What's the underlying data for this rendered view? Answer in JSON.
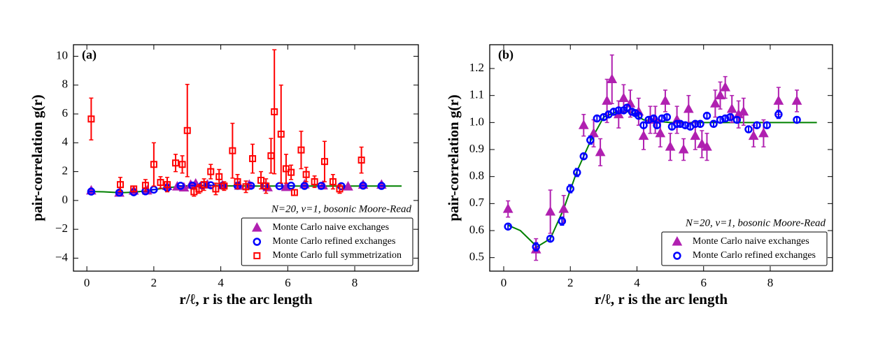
{
  "chart_data": [
    {
      "type": "scatter",
      "panel_label": "(a)",
      "ylabel": "pair-correlation g(r)",
      "xlabel": "r/ℓ, r is the arc length",
      "annotation": "N=20, ν=1, bosonic Moore-Read",
      "legend": "lower right",
      "xlim": [
        -0.4,
        9.9
      ],
      "ylim": [
        -4.9,
        10.8
      ],
      "xticks": [
        0,
        2,
        4,
        6,
        8
      ],
      "yticks": [
        {
          "value": -4,
          "label": "−4"
        },
        {
          "value": -2,
          "label": "−2"
        },
        0,
        2,
        4,
        6,
        8,
        10
      ],
      "curve": {
        "color": "#008000",
        "x": [
          0.13,
          0.5,
          1.0,
          1.4,
          1.8,
          2.2,
          2.6,
          3.0,
          3.4,
          3.8,
          4.2,
          5,
          6,
          7,
          8,
          9.4
        ],
        "values": [
          0.62,
          0.6,
          0.54,
          0.57,
          0.68,
          0.82,
          0.93,
          1.02,
          1.04,
          1.04,
          1.01,
          1.0,
          1.0,
          1.0,
          1.0,
          1.0
        ]
      },
      "series": [
        {
          "name": "Monte Carlo naive exchanges",
          "color": "#b020b0",
          "marker": "triangle",
          "x": [
            0.13,
            0.97,
            1.4,
            1.8,
            2.4,
            2.7,
            2.9,
            3.1,
            3.25,
            3.6,
            4.05,
            4.55,
            4.85,
            5.4,
            5.95,
            6.5,
            7.05,
            7.8,
            8.25,
            8.8
          ],
          "values": [
            0.68,
            0.53,
            0.67,
            0.68,
            0.99,
            0.96,
            0.89,
            1.08,
            1.16,
            1.09,
            1.04,
            1.01,
            1.08,
            0.9,
            0.92,
            1.1,
            1.03,
            0.96,
            1.08,
            1.08
          ],
          "errors": [
            0.03,
            0.04,
            0.08,
            0.05,
            0.04,
            0.05,
            0.05,
            0.08,
            0.09,
            0.05,
            0.05,
            0.05,
            0.04,
            0.04,
            0.05,
            0.05,
            0.05,
            0.05,
            0.05,
            0.04
          ]
        },
        {
          "name": "Monte Carlo refined exchanges",
          "color": "#0000ff",
          "marker": "circle",
          "x": [
            0.13,
            0.97,
            1.4,
            1.75,
            2.0,
            2.4,
            2.8,
            3.15,
            3.45,
            3.7,
            4.05,
            4.5,
            4.9,
            5.3,
            5.75,
            6.1,
            6.5,
            7.0,
            7.6,
            8.25,
            8.8
          ],
          "values": [
            0.615,
            0.54,
            0.57,
            0.635,
            0.755,
            0.875,
            1.015,
            1.03,
            1.045,
            1.055,
            1.025,
            1.015,
            1.02,
            0.995,
            0.995,
            1.025,
            1.01,
            1.01,
            0.99,
            1.03,
            1.01
          ],
          "errors": [
            0.015,
            0.015,
            0.01,
            0.015,
            0.015,
            0.01,
            0.01,
            0.01,
            0.01,
            0.01,
            0.01,
            0.01,
            0.01,
            0.01,
            0.01,
            0.01,
            0.01,
            0.01,
            0.01,
            0.015,
            0.01
          ]
        },
        {
          "name": "Monte Carlo full symmetrization",
          "color": "#ff0000",
          "marker": "square",
          "x": [
            0.13,
            1.0,
            1.4,
            1.75,
            2.0,
            2.2,
            2.4,
            2.65,
            2.85,
            3.0,
            3.2,
            3.35,
            3.5,
            3.7,
            3.85,
            3.95,
            4.1,
            4.35,
            4.5,
            4.75,
            4.95,
            5.2,
            5.35,
            5.5,
            5.6,
            5.8,
            5.95,
            6.1,
            6.2,
            6.4,
            6.55,
            6.8,
            7.1,
            7.35,
            7.55,
            8.2
          ],
          "values": [
            5.65,
            1.1,
            0.8,
            1.05,
            2.5,
            1.25,
            1.1,
            2.6,
            2.5,
            4.85,
            0.6,
            0.8,
            1.1,
            2.0,
            0.8,
            1.65,
            1.0,
            3.45,
            1.3,
            0.95,
            2.9,
            1.4,
            1.0,
            3.1,
            6.15,
            4.6,
            2.2,
            1.95,
            0.55,
            3.5,
            1.8,
            1.3,
            2.7,
            1.3,
            0.8,
            2.8
          ],
          "errors": [
            1.45,
            0.5,
            0.2,
            0.4,
            1.5,
            0.4,
            0.5,
            0.6,
            0.6,
            3.2,
            0.3,
            0.3,
            0.4,
            0.5,
            0.4,
            0.5,
            0.3,
            1.9,
            0.5,
            0.4,
            1.0,
            0.6,
            0.5,
            1.2,
            4.3,
            3.4,
            1.0,
            0.5,
            0.2,
            1.3,
            0.5,
            0.4,
            1.4,
            0.5,
            0.3,
            0.9
          ]
        }
      ]
    },
    {
      "type": "scatter",
      "panel_label": "(b)",
      "ylabel": "pair-correlation g(r)",
      "xlabel": "r/ℓ, r is the arc length",
      "annotation": "N=20, ν=1, bosonic Moore-Read",
      "legend": "lower right",
      "xlim": [
        -0.42,
        9.87
      ],
      "ylim": [
        0.45,
        1.288
      ],
      "xticks": [
        0,
        2,
        4,
        6,
        8
      ],
      "yticks": [
        0.5,
        0.6,
        0.7,
        0.8,
        0.9,
        {
          "value": 1,
          "label": "1.0"
        },
        1.1,
        1.2
      ],
      "curve": {
        "color": "#008000",
        "x": [
          0.13,
          0.5,
          1.0,
          1.4,
          1.8,
          2.2,
          2.6,
          3.0,
          3.4,
          3.8,
          4.2,
          5,
          6,
          7,
          8,
          9.4
        ],
        "values": [
          0.62,
          0.6,
          0.54,
          0.57,
          0.68,
          0.82,
          0.93,
          1.02,
          1.04,
          1.04,
          1.01,
          1.0,
          1.0,
          1.0,
          1.0,
          1.0
        ]
      },
      "series": [
        {
          "name": "Monte Carlo naive exchanges",
          "color": "#b020b0",
          "marker": "triangle",
          "x": [
            0.13,
            0.97,
            1.4,
            1.8,
            2.4,
            2.7,
            2.9,
            3.1,
            3.25,
            3.45,
            3.6,
            3.8,
            4.05,
            4.2,
            4.4,
            4.55,
            4.7,
            4.85,
            5.0,
            5.2,
            5.4,
            5.55,
            5.75,
            5.95,
            6.1,
            6.35,
            6.5,
            6.65,
            6.85,
            7.05,
            7.2,
            7.5,
            7.8,
            8.25,
            8.8
          ],
          "values": [
            0.68,
            0.53,
            0.67,
            0.68,
            0.99,
            0.96,
            0.89,
            1.08,
            1.16,
            1.03,
            1.09,
            1.07,
            1.04,
            0.95,
            1.01,
            1.01,
            0.96,
            1.08,
            0.91,
            1.01,
            0.9,
            1.05,
            0.95,
            0.92,
            0.91,
            1.07,
            1.1,
            1.13,
            1.05,
            1.03,
            1.04,
            0.95,
            0.96,
            1.08,
            1.08
          ],
          "errors": [
            0.03,
            0.04,
            0.08,
            0.05,
            0.04,
            0.05,
            0.05,
            0.08,
            0.09,
            0.05,
            0.05,
            0.05,
            0.05,
            0.05,
            0.05,
            0.05,
            0.05,
            0.04,
            0.05,
            0.05,
            0.04,
            0.05,
            0.05,
            0.05,
            0.05,
            0.05,
            0.05,
            0.04,
            0.05,
            0.05,
            0.05,
            0.04,
            0.05,
            0.05,
            0.04
          ]
        },
        {
          "name": "Monte Carlo refined exchanges",
          "color": "#0000ff",
          "marker": "circle",
          "x": [
            0.13,
            0.97,
            1.4,
            1.75,
            2.0,
            2.2,
            2.4,
            2.6,
            2.8,
            3.0,
            3.15,
            3.3,
            3.45,
            3.6,
            3.7,
            3.85,
            3.95,
            4.05,
            4.2,
            4.35,
            4.5,
            4.6,
            4.75,
            4.9,
            5.05,
            5.2,
            5.3,
            5.45,
            5.6,
            5.75,
            5.9,
            6.1,
            6.3,
            6.5,
            6.65,
            6.8,
            7.0,
            7.35,
            7.6,
            7.9,
            8.25,
            8.8
          ],
          "values": [
            0.615,
            0.54,
            0.57,
            0.635,
            0.755,
            0.815,
            0.875,
            0.935,
            1.015,
            1.02,
            1.03,
            1.04,
            1.045,
            1.045,
            1.055,
            1.04,
            1.035,
            1.025,
            0.99,
            1.01,
            1.015,
            0.99,
            1.015,
            1.02,
            0.985,
            0.995,
            0.995,
            0.99,
            0.985,
            0.995,
            0.995,
            1.025,
            0.995,
            1.01,
            1.015,
            1.02,
            1.01,
            0.975,
            0.99,
            0.99,
            1.03,
            1.01
          ],
          "errors": [
            0.01,
            0.015,
            0.01,
            0.015,
            0.015,
            0.015,
            0.01,
            0.015,
            0.01,
            0.01,
            0.01,
            0.01,
            0.01,
            0.01,
            0.01,
            0.01,
            0.01,
            0.01,
            0.01,
            0.01,
            0.01,
            0.01,
            0.01,
            0.01,
            0.01,
            0.01,
            0.01,
            0.01,
            0.01,
            0.01,
            0.01,
            0.01,
            0.01,
            0.01,
            0.01,
            0.01,
            0.01,
            0.01,
            0.01,
            0.01,
            0.015,
            0.01
          ]
        }
      ]
    }
  ]
}
